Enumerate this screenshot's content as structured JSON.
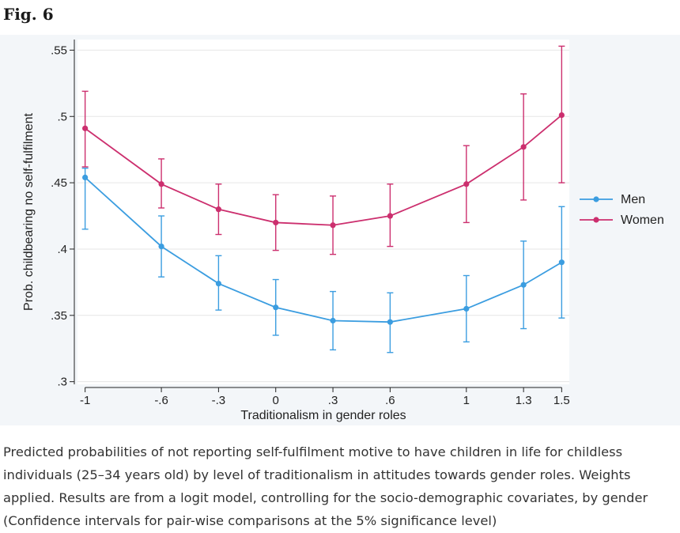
{
  "figure": {
    "label": "Fig. 6",
    "caption": "Predicted probabilities of not reporting self-fulfilment motive to have children in life for childless individuals (25–34 years old) by level of traditionalism in attitudes towards gender roles. Weights applied. Results are from a logit model, controlling for the socio-demographic covariates, by gender (Confidence intervals for pair-wise comparisons at the 5% significance level)"
  },
  "chart_data": {
    "type": "line",
    "title": "",
    "xlabel": "Traditionalism in gender roles",
    "ylabel": "Prob. childbearing no self-fulfilment",
    "x": [
      -1,
      -0.6,
      -0.3,
      0,
      0.3,
      0.6,
      1,
      1.3,
      1.5
    ],
    "x_tick_labels": [
      "-1",
      "-.6",
      "-.3",
      "0",
      ".3",
      ".6",
      "1",
      "1.3",
      "1.5"
    ],
    "y_ticks": [
      0.3,
      0.35,
      0.4,
      0.45,
      0.5,
      0.55
    ],
    "y_tick_labels": [
      ".3",
      ".35",
      ".4",
      ".45",
      ".5",
      ".55"
    ],
    "xlim": [
      -1.04,
      1.54
    ],
    "ylim": [
      0.298,
      0.558
    ],
    "grid": true,
    "legend_position": "right",
    "series": [
      {
        "name": "Men",
        "color": "#3b9de0",
        "values": [
          0.454,
          0.402,
          0.374,
          0.356,
          0.346,
          0.345,
          0.355,
          0.373,
          0.39
        ],
        "ci_low": [
          0.415,
          0.379,
          0.354,
          0.335,
          0.324,
          0.322,
          0.33,
          0.34,
          0.348
        ],
        "ci_high": [
          0.461,
          0.425,
          0.395,
          0.377,
          0.368,
          0.367,
          0.38,
          0.406,
          0.432
        ]
      },
      {
        "name": "Women",
        "color": "#cc2f6e",
        "values": [
          0.491,
          0.449,
          0.43,
          0.42,
          0.418,
          0.425,
          0.449,
          0.477,
          0.501
        ],
        "ci_low": [
          0.462,
          0.431,
          0.411,
          0.399,
          0.396,
          0.402,
          0.42,
          0.437,
          0.45
        ],
        "ci_high": [
          0.519,
          0.468,
          0.449,
          0.441,
          0.44,
          0.449,
          0.478,
          0.517,
          0.553
        ]
      }
    ]
  }
}
